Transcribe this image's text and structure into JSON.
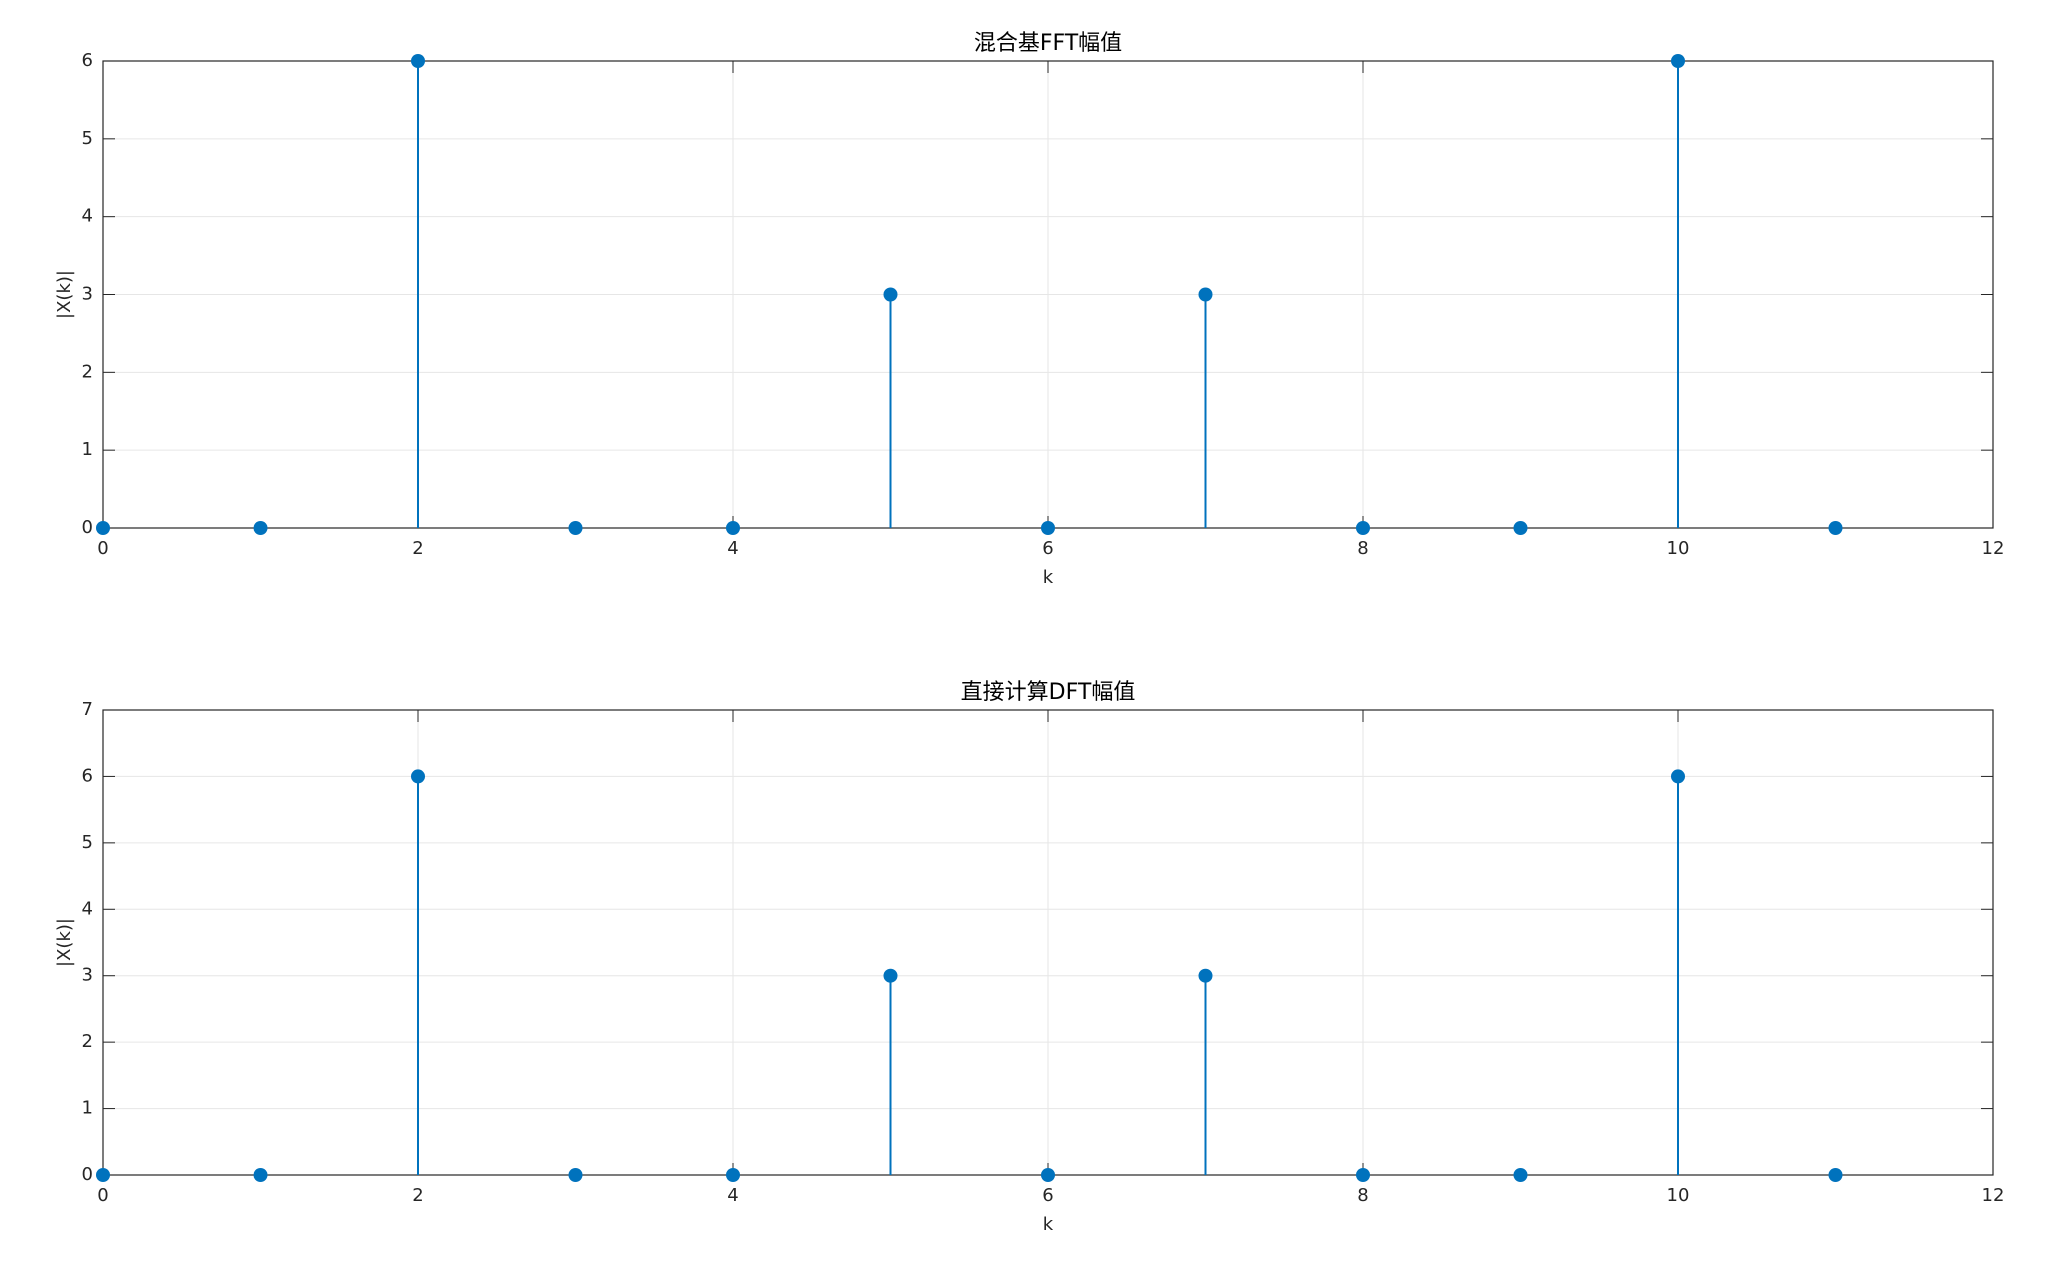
{
  "chart_data": [
    {
      "type": "stem",
      "title": "混合基FFT幅值",
      "xlabel": "k",
      "ylabel": "|X(k)|",
      "x": [
        0,
        1,
        2,
        3,
        4,
        5,
        6,
        7,
        8,
        9,
        10,
        11
      ],
      "values": [
        0,
        0,
        6,
        0,
        0,
        3,
        0,
        3,
        0,
        0,
        6,
        0
      ],
      "color": "#0072bd",
      "xlim": [
        0,
        12
      ],
      "xticks": [
        0,
        2,
        4,
        6,
        8,
        10,
        12
      ],
      "ylim": [
        0,
        6
      ],
      "yticks": [
        0,
        1,
        2,
        3,
        4,
        5,
        6
      ],
      "grid": true
    },
    {
      "type": "stem",
      "title": "直接计算DFT幅值",
      "xlabel": "k",
      "ylabel": "|X(k)|",
      "x": [
        0,
        1,
        2,
        3,
        4,
        5,
        6,
        7,
        8,
        9,
        10,
        11
      ],
      "values": [
        0,
        0,
        6,
        0,
        0,
        3,
        0,
        3,
        0,
        0,
        6,
        0
      ],
      "color": "#0072bd",
      "xlim": [
        0,
        12
      ],
      "xticks": [
        0,
        2,
        4,
        6,
        8,
        10,
        12
      ],
      "ylim": [
        0,
        7
      ],
      "yticks": [
        0,
        1,
        2,
        3,
        4,
        5,
        6,
        7
      ],
      "grid": true
    }
  ]
}
